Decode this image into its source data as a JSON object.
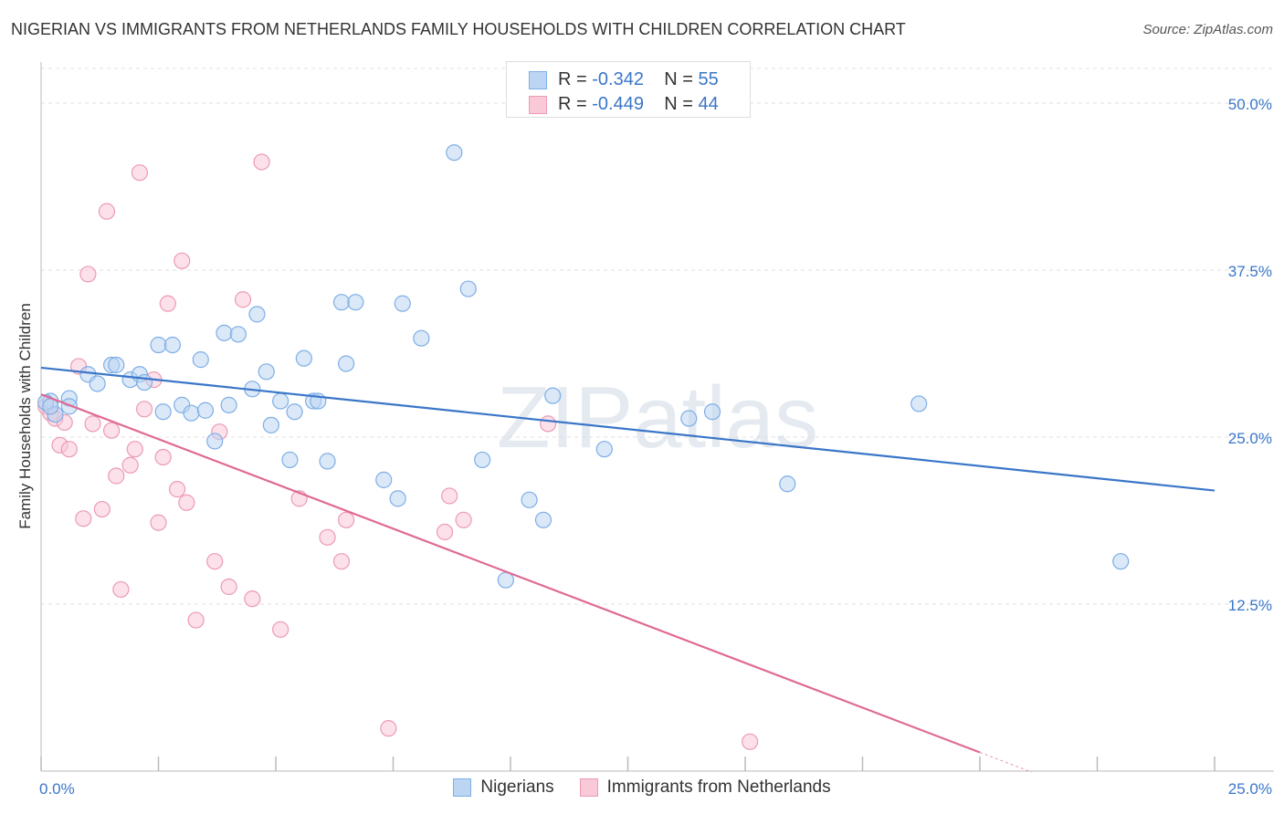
{
  "header": {
    "title": "NIGERIAN VS IMMIGRANTS FROM NETHERLANDS FAMILY HOUSEHOLDS WITH CHILDREN CORRELATION CHART",
    "source": "Source: ZipAtlas.com"
  },
  "watermark": "ZIPatlas",
  "colors": {
    "blue_fill": "#bcd5f3",
    "blue_stroke": "#7eaee6",
    "blue_line": "#3a76c8",
    "pink_fill": "#f9c9d8",
    "pink_stroke": "#ec9ab5",
    "pink_line": "#e06a95",
    "tick_text": "#3a76c8",
    "grid": "#e0e0e0"
  },
  "stats": {
    "r_label": "R =",
    "n_label": "N =",
    "series": [
      {
        "r": "-0.342",
        "n": "55"
      },
      {
        "r": "-0.449",
        "n": "44"
      }
    ]
  },
  "legend": [
    "Nigerians",
    "Immigrants from Netherlands"
  ],
  "chart_data": {
    "type": "scatter",
    "title": "NIGERIAN VS IMMIGRANTS FROM NETHERLANDS FAMILY HOUSEHOLDS WITH CHILDREN CORRELATION CHART",
    "xlabel": "",
    "ylabel": "Family Households with Children",
    "xlim": [
      0,
      25
    ],
    "ylim": [
      0,
      52.6
    ],
    "x_tick_labels": [
      "0.0%",
      "25.0%"
    ],
    "y_ticks": [
      12.5,
      25,
      37.5,
      50
    ],
    "y_tick_labels": [
      "12.5%",
      "25.0%",
      "37.5%",
      "50.0%"
    ],
    "grid": true,
    "legend_position": "bottom",
    "series": [
      {
        "name": "Nigerians",
        "trend": [
          [
            0,
            30.2
          ],
          [
            25,
            21.0
          ]
        ],
        "points": [
          [
            0.2,
            27.7
          ],
          [
            0.3,
            26.7
          ],
          [
            0.6,
            27.9
          ],
          [
            0.6,
            27.3
          ],
          [
            1.0,
            29.7
          ],
          [
            1.2,
            29.0
          ],
          [
            1.5,
            30.4
          ],
          [
            1.6,
            30.4
          ],
          [
            1.9,
            29.3
          ],
          [
            2.1,
            29.7
          ],
          [
            2.2,
            29.1
          ],
          [
            2.5,
            31.9
          ],
          [
            2.6,
            26.9
          ],
          [
            2.8,
            31.9
          ],
          [
            3.0,
            27.4
          ],
          [
            3.2,
            26.8
          ],
          [
            3.4,
            30.8
          ],
          [
            3.5,
            27.0
          ],
          [
            3.7,
            24.7
          ],
          [
            3.9,
            32.8
          ],
          [
            4.0,
            27.4
          ],
          [
            4.2,
            32.7
          ],
          [
            4.5,
            28.6
          ],
          [
            4.6,
            34.2
          ],
          [
            4.8,
            29.9
          ],
          [
            4.9,
            25.9
          ],
          [
            5.1,
            27.7
          ],
          [
            5.3,
            23.3
          ],
          [
            5.4,
            26.9
          ],
          [
            5.6,
            30.9
          ],
          [
            5.8,
            27.7
          ],
          [
            5.9,
            27.7
          ],
          [
            6.1,
            23.2
          ],
          [
            6.4,
            35.1
          ],
          [
            6.5,
            30.5
          ],
          [
            6.7,
            35.1
          ],
          [
            7.3,
            21.8
          ],
          [
            7.6,
            20.4
          ],
          [
            7.7,
            35.0
          ],
          [
            8.1,
            32.4
          ],
          [
            8.8,
            46.3
          ],
          [
            9.1,
            36.1
          ],
          [
            9.4,
            23.3
          ],
          [
            9.9,
            14.3
          ],
          [
            10.4,
            20.3
          ],
          [
            10.7,
            18.8
          ],
          [
            10.9,
            28.1
          ],
          [
            12.0,
            24.1
          ],
          [
            13.8,
            26.4
          ],
          [
            14.3,
            26.9
          ],
          [
            15.9,
            21.5
          ],
          [
            18.7,
            27.5
          ],
          [
            23.0,
            15.7
          ],
          [
            0.1,
            27.6
          ],
          [
            0.2,
            27.3
          ]
        ]
      },
      {
        "name": "Immigrants from Netherlands",
        "trend": [
          [
            0,
            28.2
          ],
          [
            20,
            1.4
          ]
        ],
        "points": [
          [
            0.1,
            27.3
          ],
          [
            0.2,
            26.8
          ],
          [
            0.3,
            26.4
          ],
          [
            0.4,
            24.4
          ],
          [
            0.5,
            26.1
          ],
          [
            0.6,
            24.1
          ],
          [
            0.8,
            30.3
          ],
          [
            0.9,
            18.9
          ],
          [
            1.0,
            37.2
          ],
          [
            1.1,
            26.0
          ],
          [
            1.3,
            19.6
          ],
          [
            1.4,
            41.9
          ],
          [
            1.5,
            25.5
          ],
          [
            1.6,
            22.1
          ],
          [
            1.7,
            13.6
          ],
          [
            1.9,
            22.9
          ],
          [
            2.0,
            24.1
          ],
          [
            2.1,
            44.8
          ],
          [
            2.2,
            27.1
          ],
          [
            2.4,
            29.3
          ],
          [
            2.5,
            18.6
          ],
          [
            2.6,
            23.5
          ],
          [
            2.7,
            35.0
          ],
          [
            2.9,
            21.1
          ],
          [
            3.0,
            38.2
          ],
          [
            3.1,
            20.1
          ],
          [
            3.3,
            11.3
          ],
          [
            3.7,
            15.7
          ],
          [
            3.8,
            25.4
          ],
          [
            4.0,
            13.8
          ],
          [
            4.3,
            35.3
          ],
          [
            4.5,
            12.9
          ],
          [
            4.7,
            45.6
          ],
          [
            5.1,
            10.6
          ],
          [
            5.5,
            20.4
          ],
          [
            6.1,
            17.5
          ],
          [
            6.4,
            15.7
          ],
          [
            6.5,
            18.8
          ],
          [
            7.4,
            3.2
          ],
          [
            8.6,
            17.9
          ],
          [
            8.7,
            20.6
          ],
          [
            9.0,
            18.8
          ],
          [
            10.8,
            26.0
          ],
          [
            15.1,
            2.2
          ]
        ]
      }
    ]
  }
}
